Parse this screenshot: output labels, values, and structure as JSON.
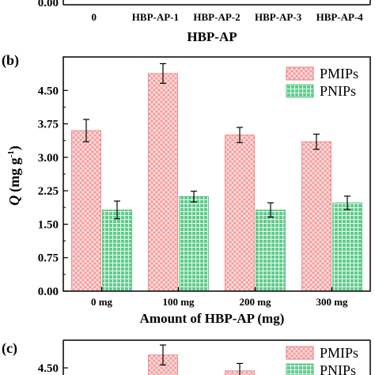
{
  "colors": {
    "pmips_fill": "#f4a0a0",
    "pmips_stroke": "#e67e7e",
    "pnips_fill": "#7ed6a0",
    "pnips_stroke": "#4fbf7c"
  },
  "chart_data": [
    {
      "panel": "(a)",
      "type": "bar",
      "xlabel": "HBP-AP",
      "categories": [
        "0",
        "HBP-AP-1",
        "HBP-AP-2",
        "HBP-AP-3",
        "HBP-AP-4"
      ],
      "yticks": [
        "0.00"
      ],
      "note": "top panel cropped; only bottom axis visible"
    },
    {
      "panel": "(b)",
      "type": "bar",
      "xlabel": "Amount of HBP-AP (mg)",
      "ylabel_italic": "Q",
      "ylabel_unit": "(mg g",
      "ylabel_sup": "-1",
      "ylabel_close": ")",
      "ylim": [
        0,
        5.25
      ],
      "yticks": [
        "0.00",
        "0.75",
        "1.50",
        "2.25",
        "3.00",
        "3.75",
        "4.50"
      ],
      "categories": [
        "0 mg",
        "100 mg",
        "200 mg",
        "300 mg"
      ],
      "legend": "top-right",
      "series": [
        {
          "name": "PMIPs",
          "values": [
            3.6,
            4.88,
            3.5,
            3.35
          ],
          "errors": [
            0.25,
            0.22,
            0.17,
            0.17
          ]
        },
        {
          "name": "PNIPs",
          "values": [
            1.82,
            2.12,
            1.82,
            1.98
          ],
          "errors": [
            0.2,
            0.12,
            0.16,
            0.15
          ]
        }
      ]
    },
    {
      "panel": "(c)",
      "type": "bar",
      "yticks": [
        "4.50"
      ],
      "legend": "top-right",
      "series": [
        {
          "name": "PMIPs",
          "values": [
            null,
            4.85,
            4.42
          ],
          "errors": [
            null,
            0.27,
            0.2
          ]
        },
        {
          "name": "PNIPs"
        }
      ],
      "note": "bottom panel cropped; only top visible"
    }
  ]
}
